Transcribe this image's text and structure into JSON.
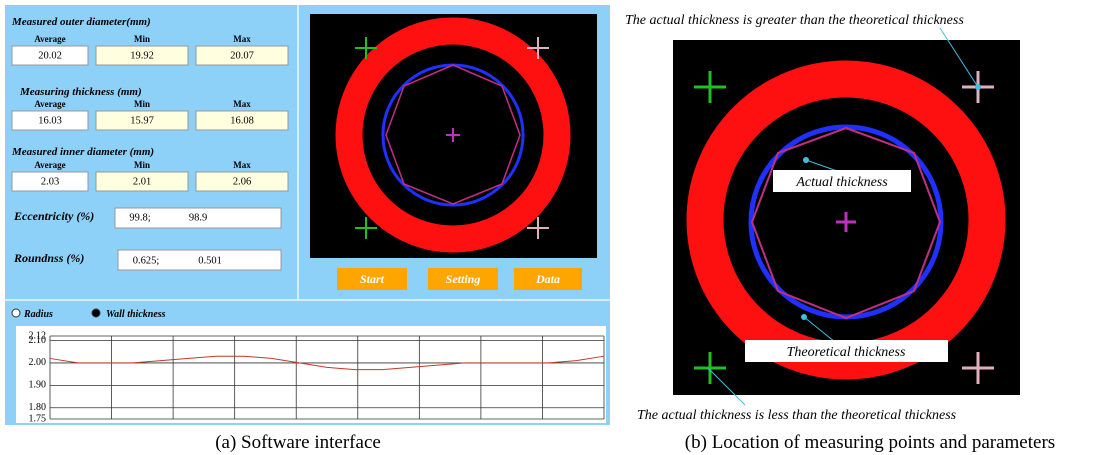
{
  "interface": {
    "outer_diameter": {
      "title": "Measured outer diameter(mm)",
      "headers": [
        "Average",
        "Min",
        "Max"
      ],
      "values": [
        "20.02",
        "19.92",
        "20.07"
      ]
    },
    "thickness": {
      "title": "Measuring thickness (mm)",
      "headers": [
        "Average",
        "Min",
        "Max"
      ],
      "values": [
        "16.03",
        "15.97",
        "16.08"
      ]
    },
    "inner_diameter": {
      "title": "Measured inner diameter (mm)",
      "headers": [
        "Average",
        "Min",
        "Max"
      ],
      "values": [
        "2.03",
        "2.01",
        "2.06"
      ]
    },
    "eccentricity": {
      "label": "Eccentricity (%)",
      "values": [
        "99.8;",
        "98.9"
      ]
    },
    "roundness": {
      "label": "Roundnss (%)",
      "values": [
        "0.625;",
        "0.501"
      ]
    },
    "buttons": [
      "Start",
      "Setting",
      "Data"
    ],
    "radio": [
      "Radius",
      "Wall thickness"
    ]
  },
  "chart_data": {
    "type": "line",
    "color": "#c0392b",
    "values": [
      2.02,
      2.0,
      2.0,
      2.0,
      2.01,
      2.02,
      2.03,
      2.03,
      2.02,
      2.0,
      1.98,
      1.97,
      1.97,
      1.98,
      1.99,
      2.0,
      2.0,
      2.0,
      2.0,
      2.01,
      2.03
    ],
    "ylim": [
      1.75,
      2.12
    ],
    "yticks": [
      2.12,
      {
        "value": 2.1,
        "label": "2.10"
      },
      {
        "value": 2,
        "label": "2.00"
      },
      {
        "value": 1.9,
        "label": "1.90"
      },
      {
        "value": 1.8,
        "label": "1.80"
      },
      1.75
    ],
    "grid": true
  },
  "annotations": {
    "top": "The actual thickness is greater than the theoretical thickness",
    "bottom": "The actual thickness is less than the theoretical thickness",
    "actual_label": "Actual thickness",
    "theoretical_label": "Theoretical thickness"
  },
  "captions": [
    "(a) Software interface",
    "(b) Location of measuring points and parameters"
  ]
}
